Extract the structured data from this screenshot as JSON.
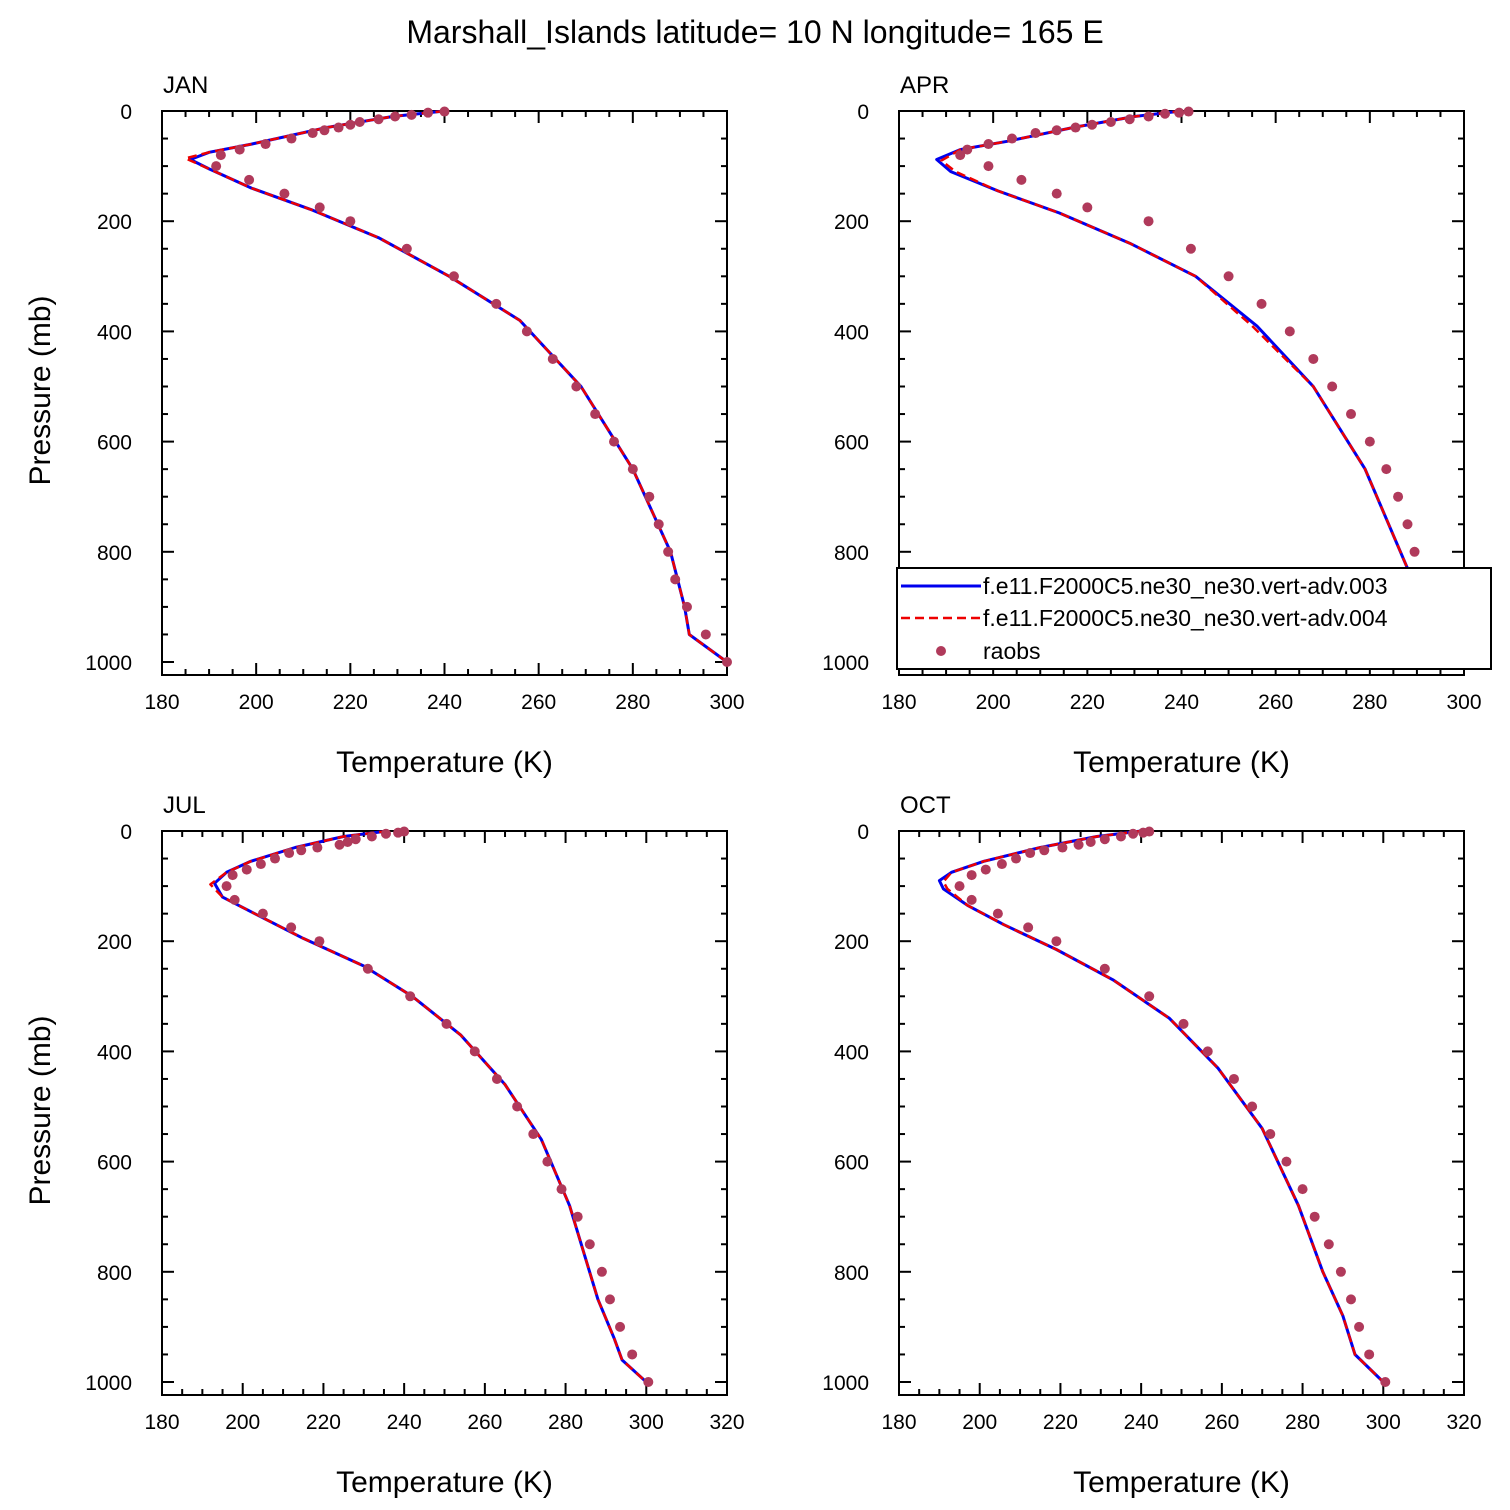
{
  "figure": {
    "title": "Marshall_Islands  latitude= 10 N longitude= 165 E",
    "xlabel": "Temperature (K)",
    "ylabel": "Pressure (mb)"
  },
  "legend": {
    "placement": "inside APR panel, lower-left",
    "entries": [
      {
        "label": "f.e11.F2000C5.ne30_ne30.vert-adv.003",
        "color": "#0000ee",
        "style": "solid line"
      },
      {
        "label": "f.e11.F2000C5.ne30_ne30.vert-adv.004",
        "color": "#ee0000",
        "style": "dashed line"
      },
      {
        "label": "raobs",
        "color": "#b03a5b",
        "style": "markers"
      }
    ]
  },
  "chart_data": [
    {
      "type": "line",
      "panel_label": "JAN",
      "xlim": [
        180,
        300
      ],
      "ylim": [
        1000,
        0
      ],
      "xticks": [
        180,
        200,
        220,
        240,
        260,
        280,
        300
      ],
      "yticks": [
        0,
        200,
        400,
        600,
        800,
        1000
      ],
      "series": [
        {
          "name": "f.e11.F2000C5.ne30_ne30.vert-adv.003",
          "color": "#0000ee",
          "x": [
            240,
            229,
            215,
            199,
            190,
            186,
            190,
            199,
            212,
            226,
            241,
            256,
            269,
            280,
            288,
            291,
            292,
            300
          ],
          "y": [
            0,
            10,
            30,
            60,
            75,
            88,
            105,
            140,
            180,
            230,
            300,
            380,
            500,
            650,
            800,
            900,
            950,
            1000
          ]
        },
        {
          "name": "f.e11.F2000C5.ne30_ne30.vert-adv.004",
          "color": "#ee0000",
          "x": [
            240,
            229,
            215,
            199,
            190,
            185,
            190,
            199,
            212,
            226,
            241,
            256,
            269,
            280,
            288,
            291,
            292,
            300
          ],
          "y": [
            0,
            10,
            30,
            60,
            75,
            86,
            105,
            140,
            180,
            230,
            300,
            380,
            500,
            650,
            800,
            900,
            950,
            1000
          ]
        },
        {
          "name": "raobs",
          "color": "#b03a5b",
          "x": [
            240,
            236.5,
            233,
            229.5,
            226,
            222,
            220,
            217.5,
            214.5,
            212,
            207.5,
            202,
            196.5,
            192.5,
            191.5,
            198.5,
            206,
            213.5,
            220,
            232,
            242,
            251,
            257.5,
            263,
            268,
            272,
            276,
            280,
            283.5,
            285.5,
            287.5,
            289,
            291.5,
            295.5,
            300
          ],
          "y": [
            1,
            3,
            7,
            10,
            15,
            20,
            25,
            30,
            35,
            40,
            50,
            60,
            70,
            80,
            100,
            125,
            150,
            175,
            200,
            250,
            300,
            350,
            400,
            450,
            500,
            550,
            600,
            650,
            700,
            750,
            800,
            850,
            900,
            950,
            1000
          ]
        }
      ]
    },
    {
      "type": "line",
      "panel_label": "APR",
      "xlim": [
        180,
        300
      ],
      "ylim": [
        1000,
        0
      ],
      "xticks": [
        180,
        200,
        220,
        240,
        260,
        280,
        300
      ],
      "yticks": [
        0,
        200,
        400,
        600,
        800,
        1000
      ],
      "series": [
        {
          "name": "f.e11.F2000C5.ne30_ne30.vert-adv.003",
          "color": "#0000ee",
          "x": [
            240,
            230,
            217,
            203,
            193,
            188,
            191,
            201,
            214,
            229,
            243,
            256,
            268,
            279,
            289,
            292,
            294,
            300
          ],
          "y": [
            0,
            10,
            30,
            55,
            70,
            88,
            110,
            145,
            185,
            240,
            300,
            390,
            500,
            650,
            850,
            920,
            960,
            1000
          ]
        },
        {
          "name": "f.e11.F2000C5.ne30_ne30.vert-adv.004",
          "color": "#ee0000",
          "x": [
            240,
            230,
            217,
            203,
            193,
            189,
            192,
            201,
            214,
            229,
            243,
            255,
            268,
            279,
            289,
            292,
            294,
            300
          ],
          "y": [
            0,
            10,
            30,
            55,
            70,
            90,
            110,
            145,
            185,
            240,
            300,
            390,
            500,
            650,
            850,
            920,
            960,
            1000
          ]
        },
        {
          "name": "raobs",
          "color": "#b03a5b",
          "x": [
            241.5,
            239.5,
            236.5,
            233,
            229,
            225,
            221,
            217.5,
            213.5,
            209,
            204,
            199,
            194.5,
            193,
            199,
            206,
            213.5,
            220,
            233,
            242,
            250,
            257,
            263,
            268,
            272,
            276,
            280,
            283.5,
            286,
            288,
            289.5,
            291.5,
            293,
            296,
            300
          ],
          "y": [
            1,
            3,
            5,
            10,
            15,
            20,
            25,
            30,
            35,
            40,
            50,
            60,
            70,
            80,
            100,
            125,
            150,
            175,
            200,
            250,
            300,
            350,
            400,
            450,
            500,
            550,
            600,
            650,
            700,
            750,
            800,
            850,
            900,
            950,
            1000
          ]
        }
      ]
    },
    {
      "type": "line",
      "panel_label": "JUL",
      "xlim": [
        180,
        320
      ],
      "ylim": [
        1000,
        0
      ],
      "xticks": [
        180,
        200,
        220,
        240,
        260,
        280,
        300,
        320
      ],
      "yticks": [
        0,
        200,
        400,
        600,
        800,
        1000
      ],
      "series": [
        {
          "name": "f.e11.F2000C5.ne30_ne30.vert-adv.003",
          "color": "#0000ee",
          "x": [
            236,
            225,
            213,
            202,
            196,
            193,
            195,
            203,
            215,
            230,
            242,
            254,
            265,
            274,
            281,
            288,
            292,
            294,
            300
          ],
          "y": [
            0,
            10,
            30,
            55,
            75,
            95,
            120,
            150,
            195,
            245,
            300,
            370,
            460,
            560,
            680,
            850,
            920,
            960,
            1000
          ]
        },
        {
          "name": "f.e11.F2000C5.ne30_ne30.vert-adv.004",
          "color": "#ee0000",
          "x": [
            236,
            225,
            213,
            202,
            196,
            192,
            195,
            203,
            215,
            230,
            242,
            254,
            265,
            274,
            281,
            288,
            292,
            294,
            300
          ],
          "y": [
            0,
            10,
            30,
            55,
            75,
            97,
            120,
            150,
            195,
            245,
            300,
            370,
            460,
            560,
            680,
            850,
            920,
            960,
            1000
          ]
        },
        {
          "name": "raobs",
          "color": "#b03a5b",
          "x": [
            240,
            238.5,
            235.5,
            232,
            228,
            226,
            224,
            218.5,
            214.5,
            211.5,
            208,
            204.5,
            201,
            197.5,
            196,
            198,
            205,
            212,
            219,
            231,
            241.5,
            250.5,
            257.5,
            263,
            268,
            272,
            275.5,
            279,
            283,
            286,
            289,
            291,
            293.5,
            296.5,
            300.5
          ],
          "y": [
            1,
            3,
            5,
            10,
            15,
            20,
            25,
            30,
            35,
            40,
            50,
            60,
            70,
            80,
            100,
            125,
            150,
            175,
            200,
            250,
            300,
            350,
            400,
            450,
            500,
            550,
            600,
            650,
            700,
            750,
            800,
            850,
            900,
            950,
            1000
          ]
        }
      ]
    },
    {
      "type": "line",
      "panel_label": "OCT",
      "xlim": [
        180,
        320
      ],
      "ylim": [
        1000,
        0
      ],
      "xticks": [
        180,
        200,
        220,
        240,
        260,
        280,
        300,
        320
      ],
      "yticks": [
        0,
        200,
        400,
        600,
        800,
        1000
      ],
      "series": [
        {
          "name": "f.e11.F2000C5.ne30_ne30.vert-adv.003",
          "color": "#0000ee",
          "x": [
            240,
            229,
            215,
            201,
            193,
            190,
            191,
            197,
            206,
            219,
            233,
            247,
            259,
            270,
            279,
            285,
            290,
            293,
            300
          ],
          "y": [
            0,
            10,
            30,
            55,
            75,
            90,
            105,
            135,
            170,
            215,
            270,
            340,
            430,
            540,
            680,
            800,
            880,
            950,
            1000
          ]
        },
        {
          "name": "f.e11.F2000C5.ne30_ne30.vert-adv.004",
          "color": "#ee0000",
          "x": [
            240,
            229,
            215,
            201,
            193,
            191,
            192,
            197,
            206,
            219,
            233,
            247,
            259,
            270,
            279,
            285,
            290,
            293,
            300
          ],
          "y": [
            0,
            10,
            30,
            55,
            75,
            92,
            105,
            135,
            170,
            215,
            270,
            340,
            430,
            540,
            680,
            800,
            880,
            950,
            1000
          ]
        },
        {
          "name": "raobs",
          "color": "#b03a5b",
          "x": [
            242,
            240.5,
            238,
            235,
            231,
            227.5,
            224.5,
            220.5,
            216,
            212.5,
            209,
            205.5,
            201.5,
            198,
            195,
            198,
            204.5,
            212,
            219,
            231,
            242,
            250.5,
            256.5,
            263,
            267.5,
            272,
            276,
            280,
            283,
            286.5,
            289.5,
            292,
            294,
            296.5,
            300.5
          ],
          "y": [
            1,
            3,
            5,
            10,
            15,
            20,
            25,
            30,
            35,
            40,
            50,
            60,
            70,
            80,
            100,
            125,
            150,
            175,
            200,
            250,
            300,
            350,
            400,
            450,
            500,
            550,
            600,
            650,
            700,
            750,
            800,
            850,
            900,
            950,
            1000
          ]
        }
      ]
    }
  ]
}
